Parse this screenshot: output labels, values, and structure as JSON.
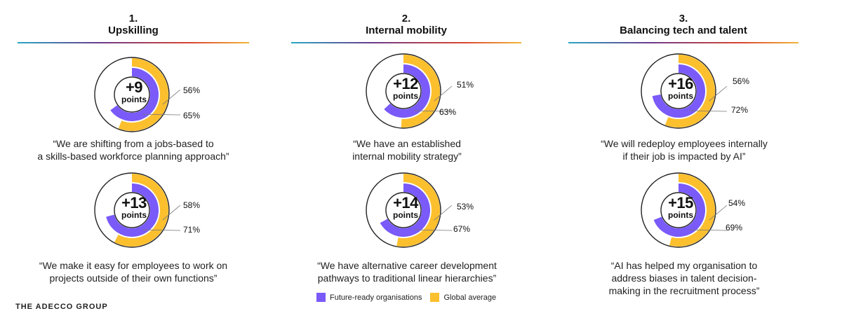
{
  "colors": {
    "future_ready": "#7a5af8",
    "global": "#fcbf2d",
    "ring_outline": "#222222"
  },
  "columns": [
    {
      "number": "1.",
      "title": "Upskilling"
    },
    {
      "number": "2.",
      "title": "Internal mobility"
    },
    {
      "number": "3.",
      "title": "Balancing tech and talent"
    }
  ],
  "legend": {
    "future_ready": "Future-ready organisations",
    "global": "Global average"
  },
  "footer": "THE ADECCO GROUP",
  "chart_data": {
    "type": "donut",
    "series_names": [
      "Future-ready organisations",
      "Global average"
    ],
    "items": [
      {
        "column": 1,
        "big": "+9",
        "unit": "points",
        "global": 56,
        "future_ready": 65,
        "global_label": "56%",
        "future_label": "65%",
        "quote": [
          "“We are shifting from a jobs-based to",
          "a skills-based workforce planning approach”"
        ]
      },
      {
        "column": 1,
        "big": "+13",
        "unit": "points",
        "global": 58,
        "future_ready": 71,
        "global_label": "58%",
        "future_label": "71%",
        "quote": [
          "“We make it easy for employees to work on",
          "projects outside of their own functions”"
        ]
      },
      {
        "column": 2,
        "big": "+12",
        "unit": "points",
        "global": 51,
        "future_ready": 63,
        "global_label": "51%",
        "future_label": "63%",
        "quote": [
          "“We have an established",
          "internal mobility strategy”"
        ]
      },
      {
        "column": 2,
        "big": "+14",
        "unit": "points",
        "global": 53,
        "future_ready": 67,
        "global_label": "53%",
        "future_label": "67%",
        "quote": [
          "“We have alternative career development",
          "pathways to traditional linear hierarchies”"
        ]
      },
      {
        "column": 3,
        "big": "+16",
        "unit": "points",
        "global": 56,
        "future_ready": 72,
        "global_label": "56%",
        "future_label": "72%",
        "quote": [
          "“We will redeploy employees internally",
          "if their job is impacted by AI”"
        ]
      },
      {
        "column": 3,
        "big": "+15",
        "unit": "points",
        "global": 54,
        "future_ready": 69,
        "global_label": "54%",
        "future_label": "69%",
        "quote": [
          "“AI has helped my organisation to",
          "address biases in talent decision-",
          "making in the recruitment process”"
        ]
      }
    ]
  }
}
